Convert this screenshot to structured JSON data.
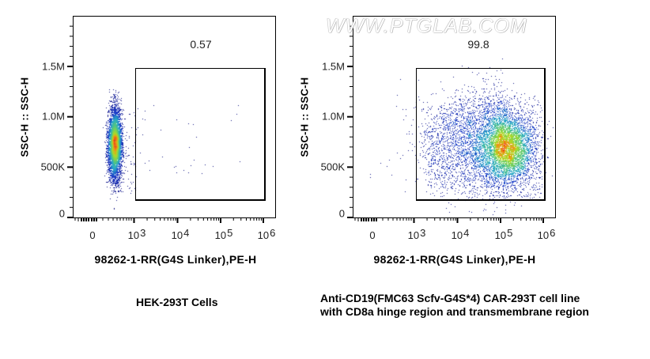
{
  "watermark": "WWW.PTGLAB.COM",
  "chart_data": [
    {
      "type": "scatter",
      "title": "",
      "caption": "HEK-293T Cells",
      "xlabel": "98262-1-RR(G4S Linker),PE-H",
      "ylabel": "SSC-H :: SSC-H",
      "x_scale": "biexponential",
      "x_ticks": [
        "0",
        "10^3",
        "10^4",
        "10^5",
        "10^6"
      ],
      "y_ticks": [
        "0",
        "500K",
        "1.0M",
        "1.5M"
      ],
      "ylim": [
        0,
        2000000
      ],
      "gate": {
        "x_range": [
          "~1.1e3",
          "~1e6"
        ],
        "y_range": [
          200000,
          1480000
        ],
        "percent": "0.57"
      },
      "population": {
        "x_center": "~300 (negative)",
        "y_center": 720000,
        "y_spread": [
          350000,
          1400000
        ],
        "description": "dense negative population left of gate"
      }
    },
    {
      "type": "scatter",
      "title": "",
      "caption": "Anti-CD19(FMC63 Scfv-G4S*4) CAR-293T cell line with CD8a hinge region and transmembrane region",
      "xlabel": "98262-1-RR(G4S Linker),PE-H",
      "ylabel": "SSC-H :: SSC-H",
      "x_scale": "biexponential",
      "x_ticks": [
        "0",
        "10^3",
        "10^4",
        "10^5",
        "10^6"
      ],
      "y_ticks": [
        "0",
        "500K",
        "1.0M",
        "1.5M"
      ],
      "ylim": [
        0,
        2000000
      ],
      "gate": {
        "x_range": [
          "~1.1e3",
          "~1e6"
        ],
        "y_range": [
          200000,
          1480000
        ],
        "percent": "99.8"
      },
      "population": {
        "x_center": "~2e5",
        "y_center": 620000,
        "y_spread": [
          350000,
          1400000
        ],
        "description": "broad positive population inside gate"
      }
    }
  ],
  "plots": [
    {
      "ylabel": "SSC-H :: SSC-H",
      "xlabel": "98262-1-RR(G4S Linker),PE-H",
      "gate_value": "0.57",
      "caption_lines": [
        "HEK-293T Cells"
      ],
      "yticks": [
        {
          "label": "1.5M"
        },
        {
          "label": "1.0M"
        },
        {
          "label": "500K"
        },
        {
          "label": "0"
        }
      ],
      "xticks": [
        {
          "base": "0",
          "exp": ""
        },
        {
          "base": "10",
          "exp": "3"
        },
        {
          "base": "10",
          "exp": "4"
        },
        {
          "base": "10",
          "exp": "5"
        },
        {
          "base": "10",
          "exp": "6"
        }
      ]
    },
    {
      "ylabel": "SSC-H :: SSC-H",
      "xlabel": "98262-1-RR(G4S Linker),PE-H",
      "gate_value": "99.8",
      "caption_lines": [
        "Anti-CD19(FMC63 Scfv-G4S*4) CAR-293T cell line",
        "with CD8a hinge region and transmembrane region"
      ],
      "yticks": [
        {
          "label": "1.5M"
        },
        {
          "label": "1.0M"
        },
        {
          "label": "500K"
        },
        {
          "label": "0"
        }
      ],
      "xticks": [
        {
          "base": "0",
          "exp": ""
        },
        {
          "base": "10",
          "exp": "3"
        },
        {
          "base": "10",
          "exp": "4"
        },
        {
          "base": "10",
          "exp": "5"
        },
        {
          "base": "10",
          "exp": "6"
        }
      ]
    }
  ],
  "colors": {
    "density_low": "#1a1a8c",
    "density_mid": "#28b4c8",
    "density_high": "#7ed321",
    "density_peak": "#f08c14",
    "density_max": "#e03c1e",
    "axis": "#000000"
  }
}
